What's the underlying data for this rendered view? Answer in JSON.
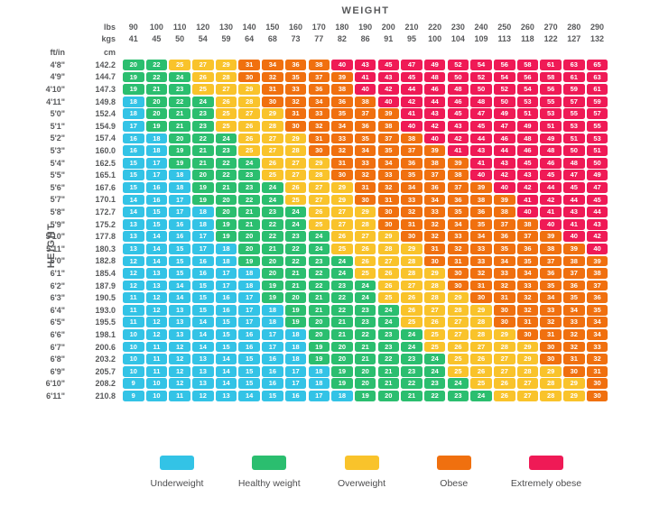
{
  "chart_data": {
    "type": "heatmap",
    "title": "WEIGHT",
    "x_axis": {
      "rows": [
        {
          "label": "lbs",
          "values": [
            90,
            100,
            110,
            120,
            130,
            140,
            150,
            160,
            170,
            180,
            190,
            200,
            210,
            220,
            230,
            240,
            250,
            260,
            270,
            280,
            290
          ]
        },
        {
          "label": "kgs",
          "values": [
            41,
            45,
            50,
            54,
            59,
            64,
            68,
            73,
            77,
            82,
            86,
            91,
            95,
            100,
            104,
            109,
            113,
            118,
            122,
            127,
            132
          ]
        }
      ]
    },
    "y_axis": {
      "ftin_label": "ft/in",
      "cm_label": "cm",
      "side_label": "HEIGHT"
    },
    "rows": [
      {
        "ftin": "4'8\"",
        "cm": "142.2",
        "values": [
          20,
          22,
          25,
          27,
          29,
          31,
          34,
          36,
          38,
          40,
          43,
          45,
          47,
          49,
          52,
          54,
          56,
          58,
          61,
          63,
          65
        ]
      },
      {
        "ftin": "4'9\"",
        "cm": "144.7",
        "values": [
          19,
          22,
          24,
          26,
          28,
          30,
          32,
          35,
          37,
          39,
          41,
          43,
          45,
          48,
          50,
          52,
          54,
          56,
          58,
          61,
          63
        ]
      },
      {
        "ftin": "4'10\"",
        "cm": "147.3",
        "values": [
          19,
          21,
          23,
          25,
          27,
          29,
          31,
          33,
          36,
          38,
          40,
          42,
          44,
          46,
          48,
          50,
          52,
          54,
          56,
          59,
          61
        ]
      },
      {
        "ftin": "4'11\"",
        "cm": "149.8",
        "values": [
          18,
          20,
          22,
          24,
          26,
          28,
          30,
          32,
          34,
          36,
          38,
          40,
          42,
          44,
          46,
          48,
          50,
          53,
          55,
          57,
          59
        ]
      },
      {
        "ftin": "5'0\"",
        "cm": "152.4",
        "values": [
          18,
          20,
          21,
          23,
          25,
          27,
          29,
          31,
          33,
          35,
          37,
          39,
          41,
          43,
          45,
          47,
          49,
          51,
          53,
          55,
          57
        ]
      },
      {
        "ftin": "5'1\"",
        "cm": "154.9",
        "values": [
          17,
          19,
          21,
          23,
          25,
          26,
          28,
          30,
          32,
          34,
          36,
          38,
          40,
          42,
          43,
          45,
          47,
          49,
          51,
          53,
          55
        ]
      },
      {
        "ftin": "5'2\"",
        "cm": "157.4",
        "values": [
          16,
          18,
          20,
          22,
          24,
          26,
          27,
          29,
          31,
          33,
          35,
          37,
          38,
          40,
          42,
          44,
          46,
          48,
          49,
          51,
          53
        ]
      },
      {
        "ftin": "5'3\"",
        "cm": "160.0",
        "values": [
          16,
          18,
          19,
          21,
          23,
          25,
          27,
          28,
          30,
          32,
          34,
          35,
          37,
          39,
          41,
          43,
          44,
          46,
          48,
          50,
          51
        ]
      },
      {
        "ftin": "5'4\"",
        "cm": "162.5",
        "values": [
          15,
          17,
          19,
          21,
          22,
          24,
          26,
          27,
          29,
          31,
          33,
          34,
          36,
          38,
          39,
          41,
          43,
          45,
          46,
          48,
          50
        ]
      },
      {
        "ftin": "5'5\"",
        "cm": "165.1",
        "values": [
          15,
          17,
          18,
          20,
          22,
          23,
          25,
          27,
          28,
          30,
          32,
          33,
          35,
          37,
          38,
          40,
          42,
          43,
          45,
          47,
          49
        ]
      },
      {
        "ftin": "5'6\"",
        "cm": "167.6",
        "values": [
          15,
          16,
          18,
          19,
          21,
          23,
          24,
          26,
          27,
          29,
          31,
          32,
          34,
          36,
          37,
          39,
          40,
          42,
          44,
          45,
          47
        ]
      },
      {
        "ftin": "5'7\"",
        "cm": "170.1",
        "values": [
          14,
          16,
          17,
          19,
          20,
          22,
          24,
          25,
          27,
          29,
          30,
          31,
          33,
          34,
          36,
          38,
          39,
          41,
          42,
          44,
          45
        ]
      },
      {
        "ftin": "5'8\"",
        "cm": "172.7",
        "values": [
          14,
          15,
          17,
          18,
          20,
          21,
          23,
          24,
          26,
          27,
          29,
          30,
          32,
          33,
          35,
          36,
          38,
          40,
          41,
          43,
          44
        ]
      },
      {
        "ftin": "5'9\"",
        "cm": "175.2",
        "values": [
          13,
          15,
          16,
          18,
          19,
          21,
          22,
          24,
          25,
          27,
          28,
          30,
          31,
          32,
          34,
          35,
          37,
          38,
          40,
          41,
          43
        ]
      },
      {
        "ftin": "5'10\"",
        "cm": "177.8",
        "values": [
          13,
          14,
          16,
          17,
          19,
          20,
          22,
          23,
          24,
          26,
          27,
          29,
          30,
          32,
          33,
          34,
          36,
          37,
          39,
          40,
          42
        ]
      },
      {
        "ftin": "5'11\"",
        "cm": "180.3",
        "values": [
          13,
          14,
          15,
          17,
          18,
          20,
          21,
          22,
          24,
          25,
          26,
          28,
          29,
          31,
          32,
          33,
          35,
          36,
          38,
          39,
          40
        ]
      },
      {
        "ftin": "6'0\"",
        "cm": "182.8",
        "values": [
          12,
          14,
          15,
          16,
          18,
          19,
          20,
          22,
          23,
          24,
          26,
          27,
          28,
          30,
          31,
          33,
          34,
          35,
          37,
          38,
          39
        ]
      },
      {
        "ftin": "6'1\"",
        "cm": "185.4",
        "values": [
          12,
          13,
          15,
          16,
          17,
          18,
          20,
          21,
          22,
          24,
          25,
          26,
          28,
          29,
          30,
          32,
          33,
          34,
          36,
          37,
          38
        ]
      },
      {
        "ftin": "6'2\"",
        "cm": "187.9",
        "values": [
          12,
          13,
          14,
          15,
          17,
          18,
          19,
          21,
          22,
          23,
          24,
          26,
          27,
          28,
          30,
          31,
          32,
          33,
          35,
          36,
          37
        ]
      },
      {
        "ftin": "6'3\"",
        "cm": "190.5",
        "values": [
          11,
          12,
          14,
          15,
          16,
          17,
          19,
          20,
          21,
          22,
          24,
          25,
          26,
          28,
          29,
          30,
          31,
          32,
          34,
          35,
          36
        ]
      },
      {
        "ftin": "6'4\"",
        "cm": "193.0",
        "values": [
          11,
          12,
          13,
          15,
          16,
          17,
          18,
          19,
          21,
          22,
          23,
          24,
          26,
          27,
          28,
          29,
          30,
          32,
          33,
          34,
          35
        ]
      },
      {
        "ftin": "6'5\"",
        "cm": "195.5",
        "values": [
          11,
          12,
          13,
          14,
          15,
          17,
          18,
          19,
          20,
          21,
          23,
          24,
          25,
          26,
          27,
          28,
          30,
          31,
          32,
          33,
          34
        ]
      },
      {
        "ftin": "6'6\"",
        "cm": "198.1",
        "values": [
          10,
          12,
          13,
          14,
          15,
          16,
          17,
          18,
          20,
          21,
          22,
          23,
          24,
          25,
          27,
          28,
          29,
          30,
          31,
          32,
          34
        ]
      },
      {
        "ftin": "6'7\"",
        "cm": "200.6",
        "values": [
          10,
          11,
          12,
          14,
          15,
          16,
          17,
          18,
          19,
          20,
          21,
          23,
          24,
          25,
          26,
          27,
          28,
          29,
          30,
          32,
          33
        ]
      },
      {
        "ftin": "6'8\"",
        "cm": "203.2",
        "values": [
          10,
          11,
          12,
          13,
          14,
          15,
          16,
          18,
          19,
          20,
          21,
          22,
          23,
          24,
          25,
          26,
          27,
          29,
          30,
          31,
          32
        ]
      },
      {
        "ftin": "6'9\"",
        "cm": "205.7",
        "values": [
          10,
          11,
          12,
          13,
          14,
          15,
          16,
          17,
          18,
          19,
          20,
          21,
          23,
          24,
          25,
          26,
          27,
          28,
          29,
          30,
          31
        ]
      },
      {
        "ftin": "6'10\"",
        "cm": "208.2",
        "values": [
          9,
          10,
          12,
          13,
          14,
          15,
          16,
          17,
          18,
          19,
          20,
          21,
          22,
          23,
          24,
          25,
          26,
          27,
          28,
          29,
          30
        ]
      },
      {
        "ftin": "6'11\"",
        "cm": "210.8",
        "values": [
          9,
          10,
          11,
          12,
          13,
          14,
          15,
          16,
          17,
          18,
          19,
          20,
          21,
          22,
          23,
          24,
          26,
          27,
          28,
          29,
          30
        ]
      }
    ],
    "legend": [
      {
        "label": "Underweight",
        "color": "#33C3E6",
        "min": 0,
        "max": 18
      },
      {
        "label": "Healthy weight",
        "color": "#2BBE6F",
        "min": 19,
        "max": 24
      },
      {
        "label": "Overweight",
        "color": "#F9C32B",
        "min": 25,
        "max": 29
      },
      {
        "label": "Obese",
        "color": "#F0700F",
        "min": 30,
        "max": 39
      },
      {
        "label": "Extremely obese",
        "color": "#EF1A56",
        "min": 40,
        "max": 99
      }
    ]
  }
}
